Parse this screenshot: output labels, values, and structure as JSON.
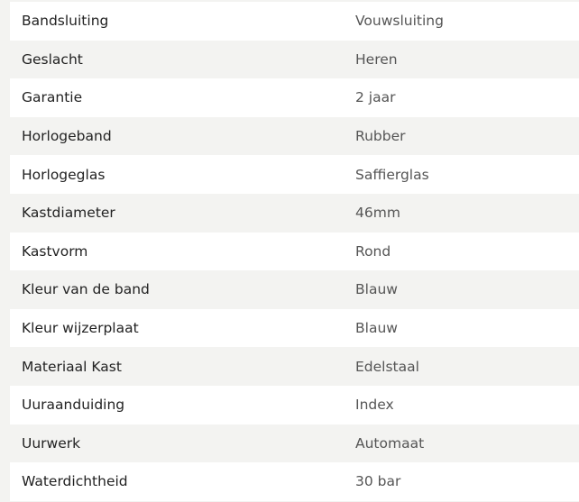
{
  "specs": [
    {
      "label": "Bandsluiting",
      "value": "Vouwsluiting"
    },
    {
      "label": "Geslacht",
      "value": "Heren"
    },
    {
      "label": "Garantie",
      "value": "2 jaar"
    },
    {
      "label": "Horlogeband",
      "value": "Rubber"
    },
    {
      "label": "Horlogeglas",
      "value": "Saffierglas"
    },
    {
      "label": "Kastdiameter",
      "value": "46mm"
    },
    {
      "label": "Kastvorm",
      "value": "Rond"
    },
    {
      "label": "Kleur van de band",
      "value": "Blauw"
    },
    {
      "label": "Kleur wijzerplaat",
      "value": "Blauw"
    },
    {
      "label": "Materiaal Kast",
      "value": "Edelstaal"
    },
    {
      "label": "Uuraanduiding",
      "value": "Index"
    },
    {
      "label": "Uurwerk",
      "value": "Automaat"
    },
    {
      "label": "Waterdichtheid",
      "value": "30 bar"
    }
  ]
}
